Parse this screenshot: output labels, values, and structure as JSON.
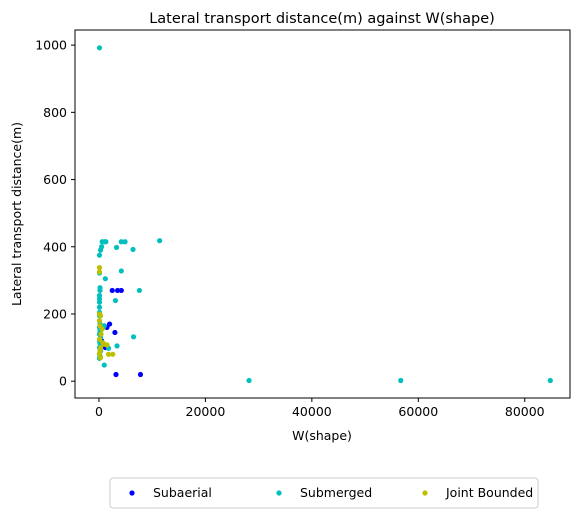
{
  "chart_data": {
    "type": "scatter",
    "title": "Lateral transport distance(m) against W(shape)",
    "xlabel": "W(shape)",
    "ylabel": "Lateral transport distance(m)",
    "xlim": [
      -4500,
      88500
    ],
    "ylim": [
      -50,
      1045
    ],
    "xticks": [
      0,
      20000,
      40000,
      60000,
      80000
    ],
    "yticks": [
      0,
      200,
      400,
      600,
      800,
      1000
    ],
    "legend_position": "bottom-center",
    "series": [
      {
        "name": "Subaerial",
        "color": "#0000ff",
        "points": [
          [
            1500,
            160
          ],
          [
            2000,
            170
          ],
          [
            1200,
            100
          ],
          [
            3000,
            145
          ],
          [
            2500,
            270
          ],
          [
            3500,
            270
          ],
          [
            4200,
            270
          ],
          [
            3200,
            20
          ],
          [
            7800,
            20
          ],
          [
            500,
            120
          ],
          [
            900,
            110
          ],
          [
            300,
            90
          ]
        ]
      },
      {
        "name": "Submerged",
        "color": "#00bfbf",
        "points": [
          [
            100,
            992
          ],
          [
            600,
            415
          ],
          [
            1000,
            415
          ],
          [
            1300,
            415
          ],
          [
            500,
            400
          ],
          [
            300,
            390
          ],
          [
            3300,
            398
          ],
          [
            4200,
            415
          ],
          [
            4900,
            415
          ],
          [
            6400,
            392
          ],
          [
            11400,
            418
          ],
          [
            100,
            375
          ],
          [
            1200,
            305
          ],
          [
            4200,
            328
          ],
          [
            100,
            322
          ],
          [
            3100,
            240
          ],
          [
            7600,
            270
          ],
          [
            200,
            278
          ],
          [
            200,
            270
          ],
          [
            100,
            255
          ],
          [
            100,
            245
          ],
          [
            100,
            235
          ],
          [
            100,
            220
          ],
          [
            100,
            205
          ],
          [
            100,
            195
          ],
          [
            100,
            180
          ],
          [
            200,
            170
          ],
          [
            100,
            160
          ],
          [
            200,
            150
          ],
          [
            100,
            140
          ],
          [
            300,
            130
          ],
          [
            100,
            120
          ],
          [
            200,
            112
          ],
          [
            100,
            100
          ],
          [
            300,
            90
          ],
          [
            100,
            80
          ],
          [
            200,
            75
          ],
          [
            100,
            68
          ],
          [
            800,
            160
          ],
          [
            1000,
            165
          ],
          [
            3400,
            105
          ],
          [
            6500,
            132
          ],
          [
            1000,
            48
          ],
          [
            1800,
            98
          ],
          [
            28200,
            2
          ],
          [
            56700,
            2
          ],
          [
            84800,
            2
          ]
        ]
      },
      {
        "name": "Joint Bounded",
        "color": "#bfbf00",
        "points": [
          [
            100,
            338
          ],
          [
            100,
            325
          ],
          [
            100,
            200
          ],
          [
            300,
            195
          ],
          [
            100,
            180
          ],
          [
            200,
            165
          ],
          [
            600,
            155
          ],
          [
            400,
            140
          ],
          [
            100,
            125
          ],
          [
            700,
            115
          ],
          [
            1000,
            110
          ],
          [
            1500,
            108
          ],
          [
            300,
            100
          ],
          [
            200,
            90
          ],
          [
            100,
            82
          ],
          [
            1800,
            80
          ],
          [
            2600,
            80
          ],
          [
            300,
            70
          ]
        ]
      }
    ]
  }
}
